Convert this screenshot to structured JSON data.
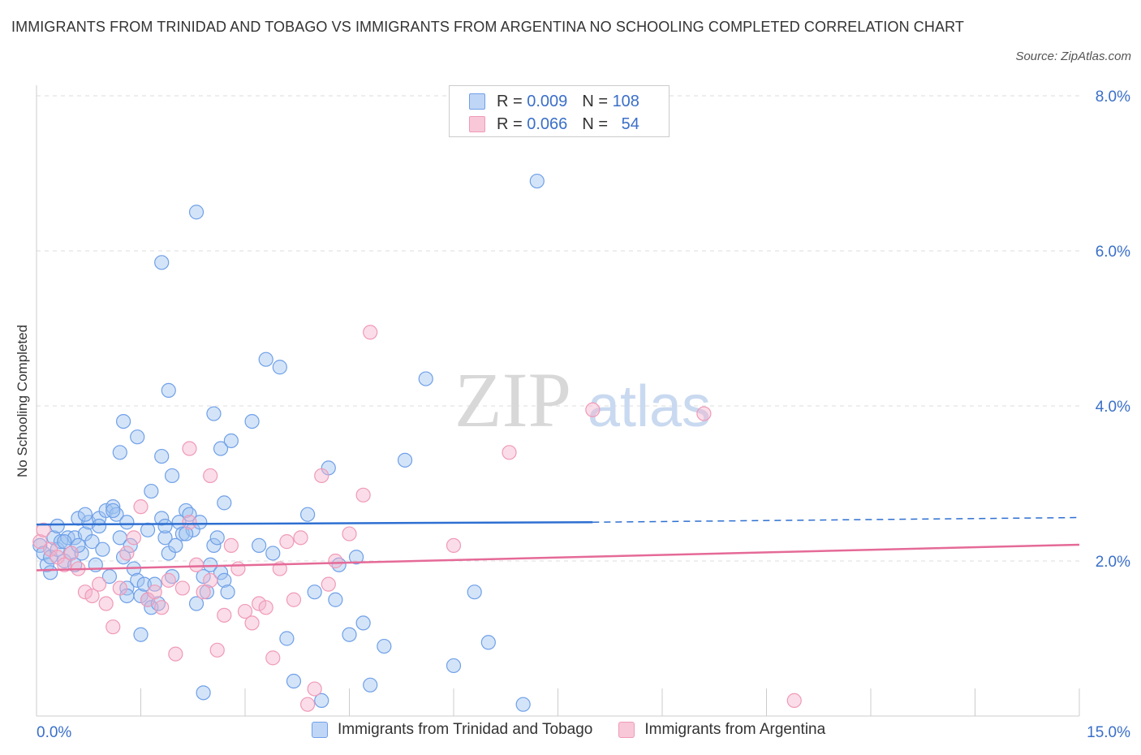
{
  "title": "IMMIGRANTS FROM TRINIDAD AND TOBAGO VS IMMIGRANTS FROM ARGENTINA NO SCHOOLING COMPLETED CORRELATION CHART",
  "source": "Source: ZipAtlas.com",
  "watermark": {
    "zip": "ZIP",
    "atlas": "atlas"
  },
  "legend": {
    "r_label": "R =",
    "n_label": "N =",
    "rows": [
      {
        "r": "0.009",
        "n": "108",
        "color": "#6fa0e8"
      },
      {
        "r": "0.066",
        "n": "54",
        "color": "#f09ab8"
      }
    ]
  },
  "chart_data": {
    "type": "scatter",
    "title": "IMMIGRANTS FROM TRINIDAD AND TOBAGO VS IMMIGRANTS FROM ARGENTINA NO SCHOOLING COMPLETED CORRELATION CHART",
    "xlabel": "",
    "ylabel": "No Schooling Completed",
    "xlim": [
      0,
      15
    ],
    "ylim": [
      0,
      8
    ],
    "x_tick_labels": [
      "0.0%",
      "15.0%"
    ],
    "y_ticks": [
      2,
      4,
      6,
      8
    ],
    "y_tick_labels": [
      "2.0%",
      "4.0%",
      "6.0%",
      "8.0%"
    ],
    "grid": true,
    "legend_position": "top-center",
    "series": [
      {
        "name": "Immigrants from Trinidad and Tobago",
        "color": "#6fa0e8",
        "r": 0.009,
        "n": 108,
        "trend": {
          "x0": 0,
          "y0": 2.47,
          "x1": 8.0,
          "y1": 2.5,
          "dash_to_x": 15,
          "dash_to_y": 2.56
        },
        "points": [
          [
            0.05,
            2.2
          ],
          [
            0.1,
            2.1
          ],
          [
            0.15,
            1.95
          ],
          [
            0.2,
            2.05
          ],
          [
            0.25,
            2.3
          ],
          [
            0.3,
            2.15
          ],
          [
            0.35,
            2.25
          ],
          [
            0.4,
            2.0
          ],
          [
            0.45,
            2.3
          ],
          [
            0.5,
            2.1
          ],
          [
            0.55,
            2.3
          ],
          [
            0.6,
            2.55
          ],
          [
            0.65,
            2.1
          ],
          [
            0.7,
            2.35
          ],
          [
            0.75,
            2.5
          ],
          [
            0.8,
            2.25
          ],
          [
            0.85,
            1.95
          ],
          [
            0.9,
            2.55
          ],
          [
            0.95,
            2.15
          ],
          [
            1.0,
            2.65
          ],
          [
            1.05,
            1.8
          ],
          [
            1.1,
            2.7
          ],
          [
            1.15,
            2.6
          ],
          [
            1.2,
            2.3
          ],
          [
            1.25,
            2.05
          ],
          [
            1.3,
            2.5
          ],
          [
            1.35,
            2.2
          ],
          [
            1.4,
            1.9
          ],
          [
            1.45,
            1.75
          ],
          [
            1.5,
            1.55
          ],
          [
            1.55,
            1.7
          ],
          [
            1.6,
            1.5
          ],
          [
            1.65,
            1.4
          ],
          [
            1.7,
            1.7
          ],
          [
            1.75,
            1.45
          ],
          [
            1.8,
            2.55
          ],
          [
            1.85,
            2.3
          ],
          [
            1.9,
            2.1
          ],
          [
            1.95,
            1.8
          ],
          [
            2.0,
            2.2
          ],
          [
            2.05,
            2.5
          ],
          [
            2.1,
            2.35
          ],
          [
            2.15,
            2.65
          ],
          [
            2.2,
            2.6
          ],
          [
            2.25,
            2.4
          ],
          [
            2.3,
            1.45
          ],
          [
            2.35,
            2.5
          ],
          [
            2.4,
            1.8
          ],
          [
            2.45,
            1.6
          ],
          [
            2.5,
            1.95
          ],
          [
            2.55,
            2.2
          ],
          [
            2.6,
            2.3
          ],
          [
            2.65,
            1.85
          ],
          [
            2.7,
            1.75
          ],
          [
            2.75,
            1.6
          ],
          [
            0.3,
            2.45
          ],
          [
            0.6,
            2.2
          ],
          [
            0.9,
            2.45
          ],
          [
            1.1,
            2.65
          ],
          [
            1.3,
            1.65
          ],
          [
            1.6,
            2.4
          ],
          [
            2.15,
            2.35
          ],
          [
            0.2,
            1.85
          ],
          [
            0.4,
            2.25
          ],
          [
            0.7,
            2.6
          ],
          [
            0.55,
            1.95
          ],
          [
            2.7,
            2.75
          ],
          [
            1.25,
            3.8
          ],
          [
            1.65,
            2.9
          ],
          [
            1.95,
            3.1
          ],
          [
            1.85,
            2.45
          ],
          [
            1.8,
            5.85
          ],
          [
            2.55,
            3.9
          ],
          [
            1.3,
            1.55
          ],
          [
            1.5,
            1.05
          ],
          [
            2.4,
            0.3
          ],
          [
            2.65,
            3.45
          ],
          [
            3.5,
            4.5
          ],
          [
            3.4,
            2.1
          ],
          [
            3.6,
            1.0
          ],
          [
            3.7,
            0.45
          ],
          [
            3.9,
            2.6
          ],
          [
            4.0,
            1.6
          ],
          [
            4.1,
            0.2
          ],
          [
            4.2,
            3.2
          ],
          [
            4.35,
            1.95
          ],
          [
            4.5,
            1.05
          ],
          [
            4.7,
            1.2
          ],
          [
            4.8,
            0.4
          ],
          [
            5.0,
            0.9
          ],
          [
            5.3,
            3.3
          ],
          [
            5.6,
            4.35
          ],
          [
            6.0,
            0.65
          ],
          [
            6.3,
            1.6
          ],
          [
            6.5,
            0.95
          ],
          [
            7.2,
            6.9
          ],
          [
            7.0,
            0.15
          ],
          [
            3.3,
            4.6
          ],
          [
            2.8,
            3.55
          ],
          [
            3.2,
            2.2
          ],
          [
            3.1,
            3.8
          ],
          [
            4.3,
            1.5
          ],
          [
            4.6,
            2.05
          ],
          [
            2.3,
            6.5
          ],
          [
            1.8,
            3.35
          ],
          [
            1.9,
            4.2
          ],
          [
            1.45,
            3.6
          ],
          [
            1.2,
            3.4
          ]
        ]
      },
      {
        "name": "Immigrants from Argentina",
        "color": "#f09ab8",
        "r": 0.066,
        "n": 54,
        "trend": {
          "x0": 0,
          "y0": 1.88,
          "x1": 15,
          "y1": 2.21
        },
        "points": [
          [
            0.05,
            2.25
          ],
          [
            0.1,
            2.4
          ],
          [
            0.2,
            2.15
          ],
          [
            0.3,
            2.05
          ],
          [
            0.4,
            1.95
          ],
          [
            0.5,
            2.1
          ],
          [
            0.6,
            1.9
          ],
          [
            0.7,
            1.6
          ],
          [
            0.8,
            1.55
          ],
          [
            0.9,
            1.7
          ],
          [
            1.0,
            1.45
          ],
          [
            1.1,
            1.15
          ],
          [
            1.2,
            1.65
          ],
          [
            1.3,
            2.1
          ],
          [
            1.4,
            2.3
          ],
          [
            1.5,
            2.7
          ],
          [
            1.6,
            1.5
          ],
          [
            1.7,
            1.6
          ],
          [
            1.8,
            1.4
          ],
          [
            1.9,
            1.75
          ],
          [
            2.0,
            0.8
          ],
          [
            2.1,
            1.65
          ],
          [
            2.2,
            2.5
          ],
          [
            2.3,
            1.95
          ],
          [
            2.4,
            1.6
          ],
          [
            2.5,
            1.75
          ],
          [
            2.6,
            0.85
          ],
          [
            2.7,
            1.3
          ],
          [
            2.8,
            2.2
          ],
          [
            2.9,
            1.9
          ],
          [
            3.0,
            1.35
          ],
          [
            3.1,
            1.2
          ],
          [
            3.2,
            1.45
          ],
          [
            3.3,
            1.4
          ],
          [
            3.4,
            0.75
          ],
          [
            3.5,
            1.9
          ],
          [
            3.6,
            2.25
          ],
          [
            3.7,
            1.5
          ],
          [
            3.8,
            2.3
          ],
          [
            3.9,
            0.15
          ],
          [
            4.0,
            0.35
          ],
          [
            4.1,
            3.1
          ],
          [
            4.2,
            1.7
          ],
          [
            4.3,
            2.0
          ],
          [
            4.5,
            2.35
          ],
          [
            4.7,
            2.85
          ],
          [
            4.8,
            4.95
          ],
          [
            6.0,
            2.2
          ],
          [
            6.8,
            3.4
          ],
          [
            8.0,
            3.95
          ],
          [
            9.6,
            3.9
          ],
          [
            10.9,
            0.2
          ],
          [
            2.2,
            3.45
          ],
          [
            2.5,
            3.1
          ]
        ]
      }
    ]
  }
}
